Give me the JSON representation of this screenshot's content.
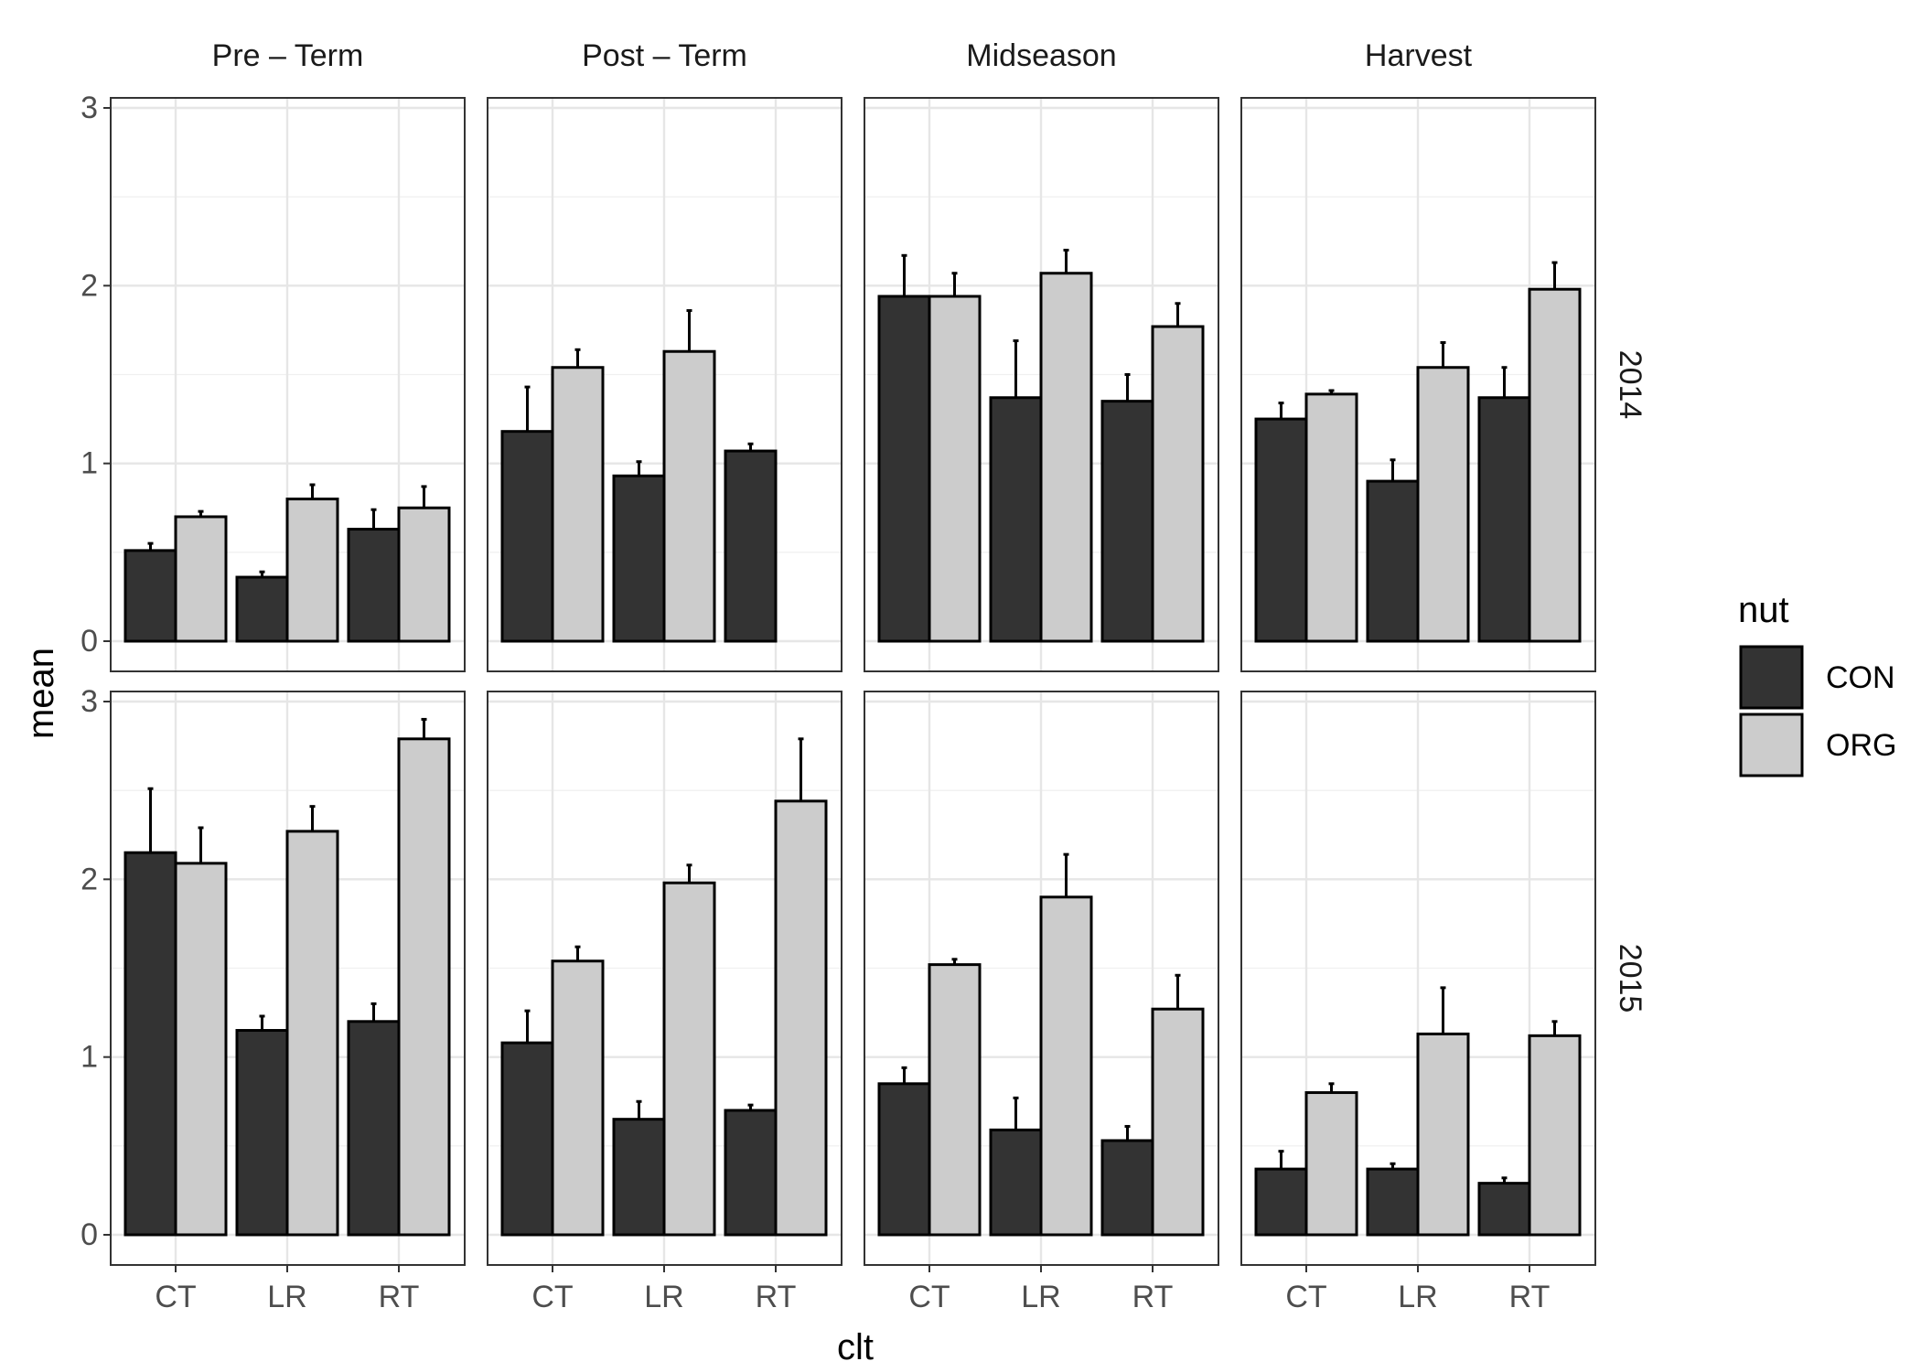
{
  "chart_data": {
    "type": "bar",
    "facet_columns": [
      "Pre – Term",
      "Post – Term",
      "Midseason",
      "Harvest"
    ],
    "facet_rows": [
      "2014",
      "2015"
    ],
    "categories": [
      "CT",
      "LR",
      "RT"
    ],
    "xlabel": "clt",
    "ylabel": "mean",
    "ylim": [
      0,
      3
    ],
    "yticks": [
      0,
      1,
      2,
      3
    ],
    "grid": true,
    "legend": {
      "title": "nut",
      "position": "right",
      "entries": [
        {
          "name": "CON",
          "color": "#333333"
        },
        {
          "name": "ORG",
          "color": "#cccccc"
        }
      ]
    },
    "panels": [
      {
        "row": "2014",
        "col": "Pre – Term",
        "series": [
          {
            "name": "CON",
            "values": [
              0.51,
              0.36,
              0.63
            ],
            "errors": [
              0.04,
              0.03,
              0.11
            ]
          },
          {
            "name": "ORG",
            "values": [
              0.7,
              0.8,
              0.75
            ],
            "errors": [
              0.03,
              0.08,
              0.12
            ]
          }
        ]
      },
      {
        "row": "2014",
        "col": "Post – Term",
        "series": [
          {
            "name": "CON",
            "values": [
              1.18,
              0.93,
              1.07
            ],
            "errors": [
              0.25,
              0.08,
              0.04
            ]
          },
          {
            "name": "ORG",
            "values": [
              1.54,
              1.63,
              null
            ],
            "errors": [
              0.1,
              0.23,
              null
            ]
          }
        ]
      },
      {
        "row": "2014",
        "col": "Midseason",
        "series": [
          {
            "name": "CON",
            "values": [
              1.94,
              1.37,
              1.35
            ],
            "errors": [
              0.23,
              0.32,
              0.15
            ]
          },
          {
            "name": "ORG",
            "values": [
              1.94,
              2.07,
              1.77
            ],
            "errors": [
              0.13,
              0.13,
              0.13
            ]
          }
        ]
      },
      {
        "row": "2014",
        "col": "Harvest",
        "series": [
          {
            "name": "CON",
            "values": [
              1.25,
              0.9,
              1.37
            ],
            "errors": [
              0.09,
              0.12,
              0.17
            ]
          },
          {
            "name": "ORG",
            "values": [
              1.39,
              1.54,
              1.98
            ],
            "errors": [
              0.02,
              0.14,
              0.15
            ]
          }
        ]
      },
      {
        "row": "2015",
        "col": "Pre – Term",
        "series": [
          {
            "name": "CON",
            "values": [
              2.15,
              1.15,
              1.2
            ],
            "errors": [
              0.36,
              0.08,
              0.1
            ]
          },
          {
            "name": "ORG",
            "values": [
              2.09,
              2.27,
              2.79
            ],
            "errors": [
              0.2,
              0.14,
              0.11
            ]
          }
        ]
      },
      {
        "row": "2015",
        "col": "Post – Term",
        "series": [
          {
            "name": "CON",
            "values": [
              1.08,
              0.65,
              0.7
            ],
            "errors": [
              0.18,
              0.1,
              0.03
            ]
          },
          {
            "name": "ORG",
            "values": [
              1.54,
              1.98,
              2.44
            ],
            "errors": [
              0.08,
              0.1,
              0.35
            ]
          }
        ]
      },
      {
        "row": "2015",
        "col": "Midseason",
        "series": [
          {
            "name": "CON",
            "values": [
              0.85,
              0.59,
              0.53
            ],
            "errors": [
              0.09,
              0.18,
              0.08
            ]
          },
          {
            "name": "ORG",
            "values": [
              1.52,
              1.9,
              1.27
            ],
            "errors": [
              0.03,
              0.24,
              0.19
            ]
          }
        ]
      },
      {
        "row": "2015",
        "col": "Harvest",
        "series": [
          {
            "name": "CON",
            "values": [
              0.37,
              0.37,
              0.29
            ],
            "errors": [
              0.1,
              0.03,
              0.03
            ]
          },
          {
            "name": "ORG",
            "values": [
              0.8,
              1.13,
              1.12
            ],
            "errors": [
              0.05,
              0.26,
              0.08
            ]
          }
        ]
      }
    ]
  }
}
